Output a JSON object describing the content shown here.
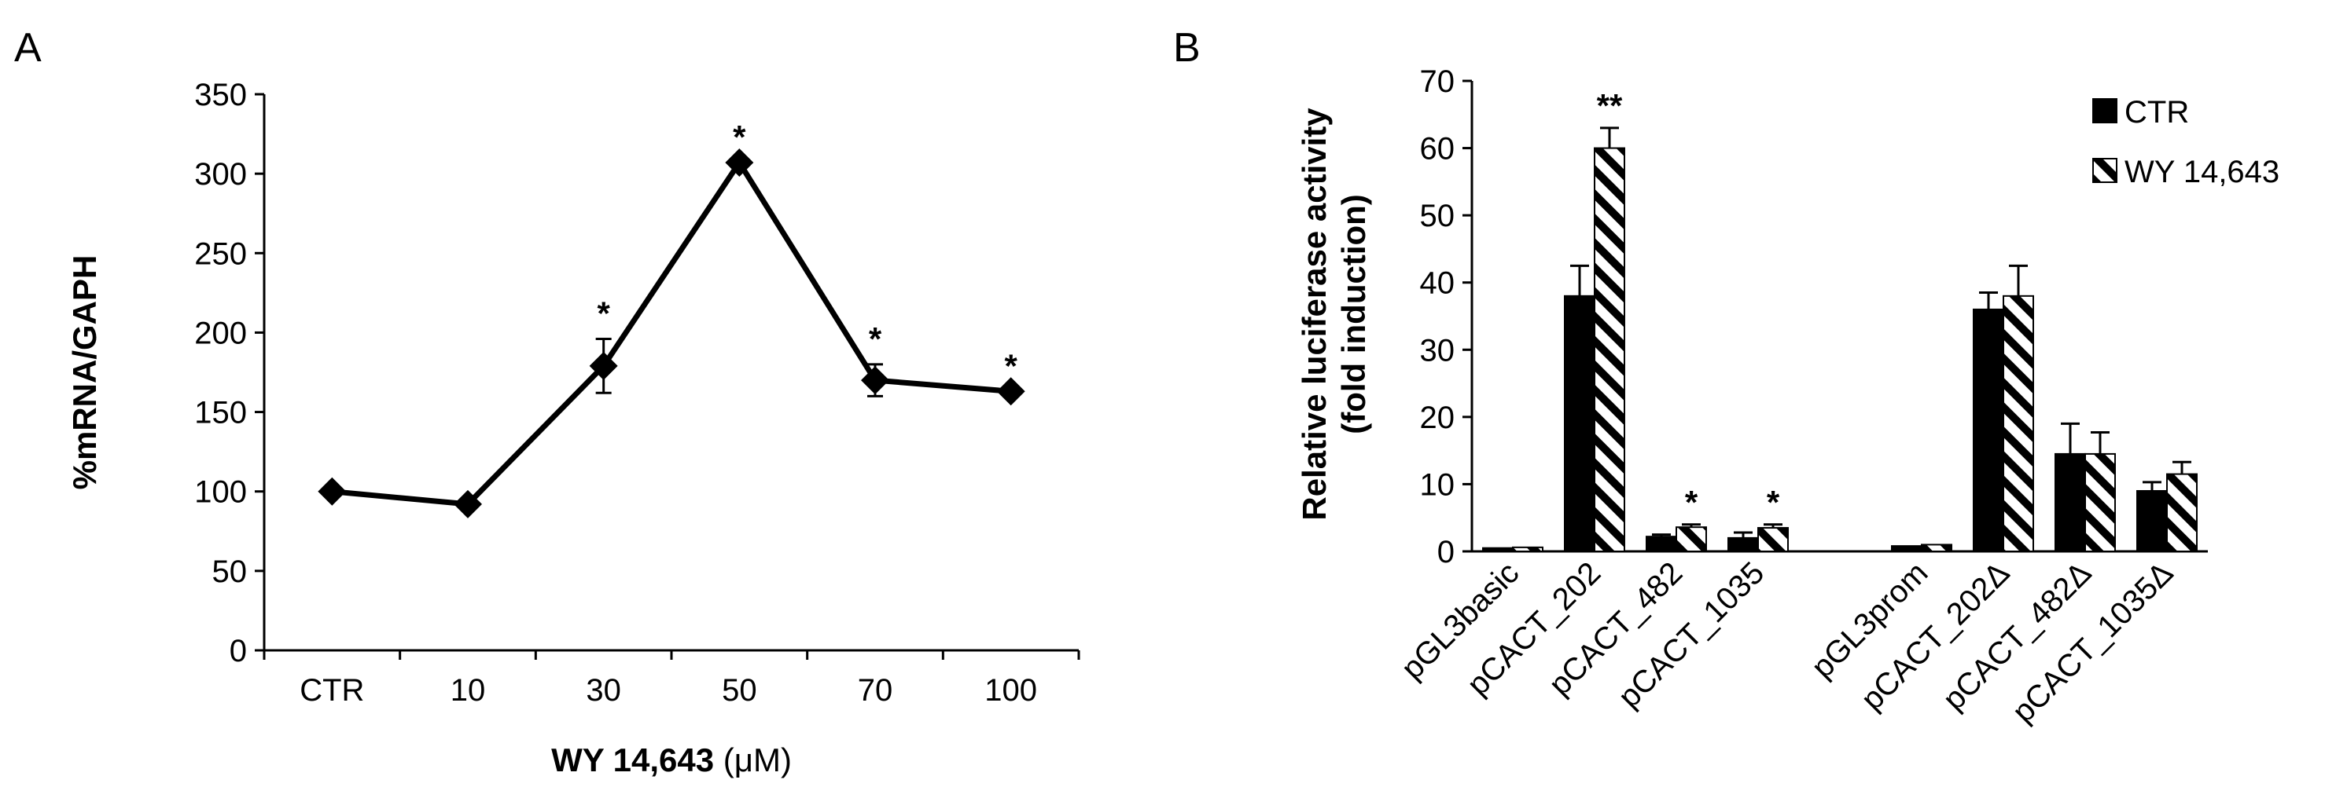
{
  "panels": {
    "a_letter": "A",
    "b_letter": "B"
  },
  "chart_data": [
    {
      "type": "line",
      "panel": "A",
      "categories": [
        "CTR",
        "10",
        "30",
        "50",
        "70",
        "100"
      ],
      "values": [
        100,
        92,
        179,
        307,
        170,
        163
      ],
      "errors": [
        0,
        0,
        17,
        0,
        10,
        0
      ],
      "significance": [
        "",
        "",
        "*",
        "*",
        "*",
        "*"
      ],
      "ylabel": "%mRNA/GAPH",
      "xlabel_bold": "WY 14,643",
      "xlabel_unit": "(μM)",
      "ylim": [
        0,
        350
      ],
      "yticks": [
        0,
        50,
        100,
        150,
        200,
        250,
        300,
        350
      ],
      "marker": "diamond",
      "color": "#000000"
    },
    {
      "type": "bar",
      "panel": "B",
      "categories": [
        "pGL3basic",
        "pCACT_202",
        "pCACT_482",
        "pCACT_1035",
        "",
        "pGL3prom",
        "pCACT_202Δ",
        "pCACT_482Δ",
        "pCACT_1035Δ"
      ],
      "series": [
        {
          "name": "CTR",
          "pattern": "solid",
          "values": [
            0.5,
            38,
            2.2,
            2.0,
            null,
            0.8,
            36,
            14.5,
            9.0
          ],
          "errors": [
            0,
            4.5,
            0.3,
            0.8,
            null,
            0,
            2.5,
            4.5,
            1.3
          ],
          "significance": [
            "",
            "",
            "",
            "",
            "",
            "",
            "",
            "",
            ""
          ]
        },
        {
          "name": "WY 14,643",
          "pattern": "hatched",
          "values": [
            0.6,
            60,
            3.6,
            3.5,
            null,
            1.0,
            38,
            14.5,
            11.5
          ],
          "errors": [
            0,
            3.0,
            0.4,
            0.5,
            null,
            0,
            4.5,
            3.2,
            1.8
          ],
          "significance": [
            "",
            "**",
            "*",
            "*",
            "",
            "",
            "",
            "",
            ""
          ]
        }
      ],
      "ylabel_line1": "Relative luciferase activity",
      "ylabel_line2": "(fold induction)",
      "ylim": [
        0,
        70
      ],
      "yticks": [
        0,
        10,
        20,
        30,
        40,
        50,
        60,
        70
      ],
      "legend_position": "top-right"
    }
  ]
}
